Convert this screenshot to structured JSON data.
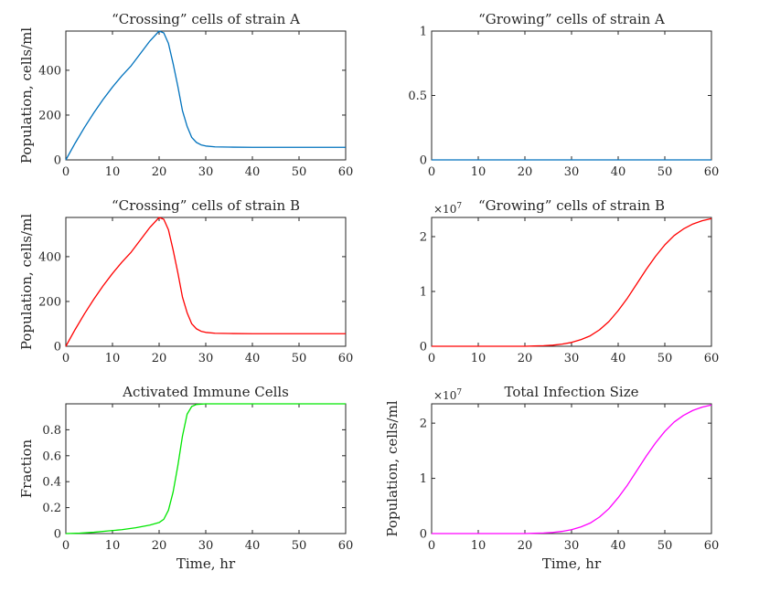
{
  "chart_data": [
    {
      "type": "line",
      "title": "“Crossing” cells of strain A",
      "xlabel": "",
      "ylabel": "Population, cells/ml",
      "xlim": [
        0,
        60
      ],
      "ylim": [
        0,
        575
      ],
      "xticks": [
        0,
        10,
        20,
        30,
        40,
        50,
        60
      ],
      "xtick_labels": [
        "0",
        "10",
        "20",
        "30",
        "40",
        "50",
        "60"
      ],
      "yticks": [
        0,
        200,
        400
      ],
      "ytick_labels": [
        "0",
        "200",
        "400"
      ],
      "exponent_label": "",
      "series": [
        {
          "name": "strain A crossing",
          "color": "#0072BD",
          "x": [
            0,
            2,
            4,
            6,
            8,
            10,
            12,
            14,
            16,
            18,
            20,
            21,
            22,
            23,
            24,
            25,
            26,
            27,
            28,
            29,
            30,
            32,
            35,
            40,
            45,
            50,
            55,
            60
          ],
          "y": [
            0,
            75,
            145,
            210,
            270,
            325,
            375,
            420,
            475,
            530,
            575,
            567,
            520,
            430,
            330,
            220,
            150,
            100,
            78,
            67,
            62,
            58,
            57,
            56,
            56,
            56,
            56,
            56
          ]
        }
      ]
    },
    {
      "type": "line",
      "title": "“Growing” cells of strain A",
      "xlabel": "",
      "ylabel": "",
      "xlim": [
        0,
        60
      ],
      "ylim": [
        0,
        1
      ],
      "xticks": [
        0,
        10,
        20,
        30,
        40,
        50,
        60
      ],
      "xtick_labels": [
        "0",
        "10",
        "20",
        "30",
        "40",
        "50",
        "60"
      ],
      "yticks": [
        0,
        0.5,
        1
      ],
      "ytick_labels": [
        "0",
        "0.5",
        "1"
      ],
      "exponent_label": "",
      "series": [
        {
          "name": "strain A growing",
          "color": "#0072BD",
          "x": [
            0,
            60
          ],
          "y": [
            0,
            0
          ]
        }
      ]
    },
    {
      "type": "line",
      "title": "“Crossing” cells of strain B",
      "xlabel": "",
      "ylabel": "Population, cells/ml",
      "xlim": [
        0,
        60
      ],
      "ylim": [
        0,
        575
      ],
      "xticks": [
        0,
        10,
        20,
        30,
        40,
        50,
        60
      ],
      "xtick_labels": [
        "0",
        "10",
        "20",
        "30",
        "40",
        "50",
        "60"
      ],
      "yticks": [
        0,
        200,
        400
      ],
      "ytick_labels": [
        "0",
        "200",
        "400"
      ],
      "exponent_label": "",
      "series": [
        {
          "name": "strain B crossing",
          "color": "#FF0000",
          "x": [
            0,
            2,
            4,
            6,
            8,
            10,
            12,
            14,
            16,
            18,
            20,
            21,
            22,
            23,
            24,
            25,
            26,
            27,
            28,
            29,
            30,
            32,
            35,
            40,
            45,
            50,
            55,
            60
          ],
          "y": [
            0,
            75,
            145,
            210,
            270,
            325,
            375,
            420,
            475,
            530,
            575,
            567,
            520,
            430,
            330,
            220,
            150,
            100,
            78,
            67,
            62,
            58,
            57,
            56,
            56,
            56,
            56,
            56
          ]
        }
      ]
    },
    {
      "type": "line",
      "title": "“Growing” cells of strain B",
      "xlabel": "",
      "ylabel": "",
      "xlim": [
        0,
        60
      ],
      "ylim": [
        0,
        2.35
      ],
      "xticks": [
        0,
        10,
        20,
        30,
        40,
        50,
        60
      ],
      "xtick_labels": [
        "0",
        "10",
        "20",
        "30",
        "40",
        "50",
        "60"
      ],
      "yticks": [
        0,
        1,
        2
      ],
      "ytick_labels": [
        "0",
        "1",
        "2"
      ],
      "exponent_label": "×10",
      "exponent_power": "7",
      "series": [
        {
          "name": "strain B growing (×10^7)",
          "color": "#FF0000",
          "x": [
            0,
            20,
            22,
            24,
            26,
            28,
            30,
            32,
            34,
            36,
            38,
            40,
            42,
            44,
            46,
            48,
            50,
            52,
            54,
            56,
            58,
            60
          ],
          "y": [
            0,
            0,
            0.005,
            0.01,
            0.02,
            0.04,
            0.07,
            0.12,
            0.19,
            0.3,
            0.45,
            0.65,
            0.88,
            1.14,
            1.4,
            1.64,
            1.85,
            2.02,
            2.14,
            2.23,
            2.29,
            2.33
          ]
        }
      ]
    },
    {
      "type": "line",
      "title": "Activated Immune Cells",
      "xlabel": "Time, hr",
      "ylabel": "Fraction",
      "xlim": [
        0,
        60
      ],
      "ylim": [
        0,
        1
      ],
      "xticks": [
        0,
        10,
        20,
        30,
        40,
        50,
        60
      ],
      "xtick_labels": [
        "0",
        "10",
        "20",
        "30",
        "40",
        "50",
        "60"
      ],
      "yticks": [
        0,
        0.2,
        0.4,
        0.6,
        0.8
      ],
      "ytick_labels": [
        "0",
        "0.2",
        "0.4",
        "0.6",
        "0.8"
      ],
      "exponent_label": "",
      "series": [
        {
          "name": "activated immune fraction",
          "color": "#00E600",
          "x": [
            0,
            3,
            6,
            9,
            12,
            15,
            18,
            20,
            21,
            22,
            23,
            24,
            25,
            26,
            27,
            28,
            30,
            35,
            40,
            50,
            60
          ],
          "y": [
            0,
            0.003,
            0.01,
            0.02,
            0.03,
            0.045,
            0.065,
            0.085,
            0.11,
            0.18,
            0.32,
            0.52,
            0.75,
            0.92,
            0.98,
            0.995,
            1,
            1,
            1,
            1,
            1
          ]
        }
      ]
    },
    {
      "type": "line",
      "title": "Total Infection Size",
      "xlabel": "Time, hr",
      "ylabel": "Population, cells/ml",
      "xlim": [
        0,
        60
      ],
      "ylim": [
        0,
        2.35
      ],
      "xticks": [
        0,
        10,
        20,
        30,
        40,
        50,
        60
      ],
      "xtick_labels": [
        "0",
        "10",
        "20",
        "30",
        "40",
        "50",
        "60"
      ],
      "yticks": [
        0,
        1,
        2
      ],
      "ytick_labels": [
        "0",
        "1",
        "2"
      ],
      "exponent_label": "×10",
      "exponent_power": "7",
      "series": [
        {
          "name": "total infection (×10^7)",
          "color": "#FF00FF",
          "x": [
            0,
            20,
            22,
            24,
            26,
            28,
            30,
            32,
            34,
            36,
            38,
            40,
            42,
            44,
            46,
            48,
            50,
            52,
            54,
            56,
            58,
            60
          ],
          "y": [
            0,
            0,
            0.005,
            0.01,
            0.02,
            0.04,
            0.07,
            0.12,
            0.19,
            0.3,
            0.45,
            0.65,
            0.88,
            1.14,
            1.4,
            1.64,
            1.85,
            2.02,
            2.14,
            2.23,
            2.29,
            2.33
          ]
        }
      ]
    }
  ]
}
